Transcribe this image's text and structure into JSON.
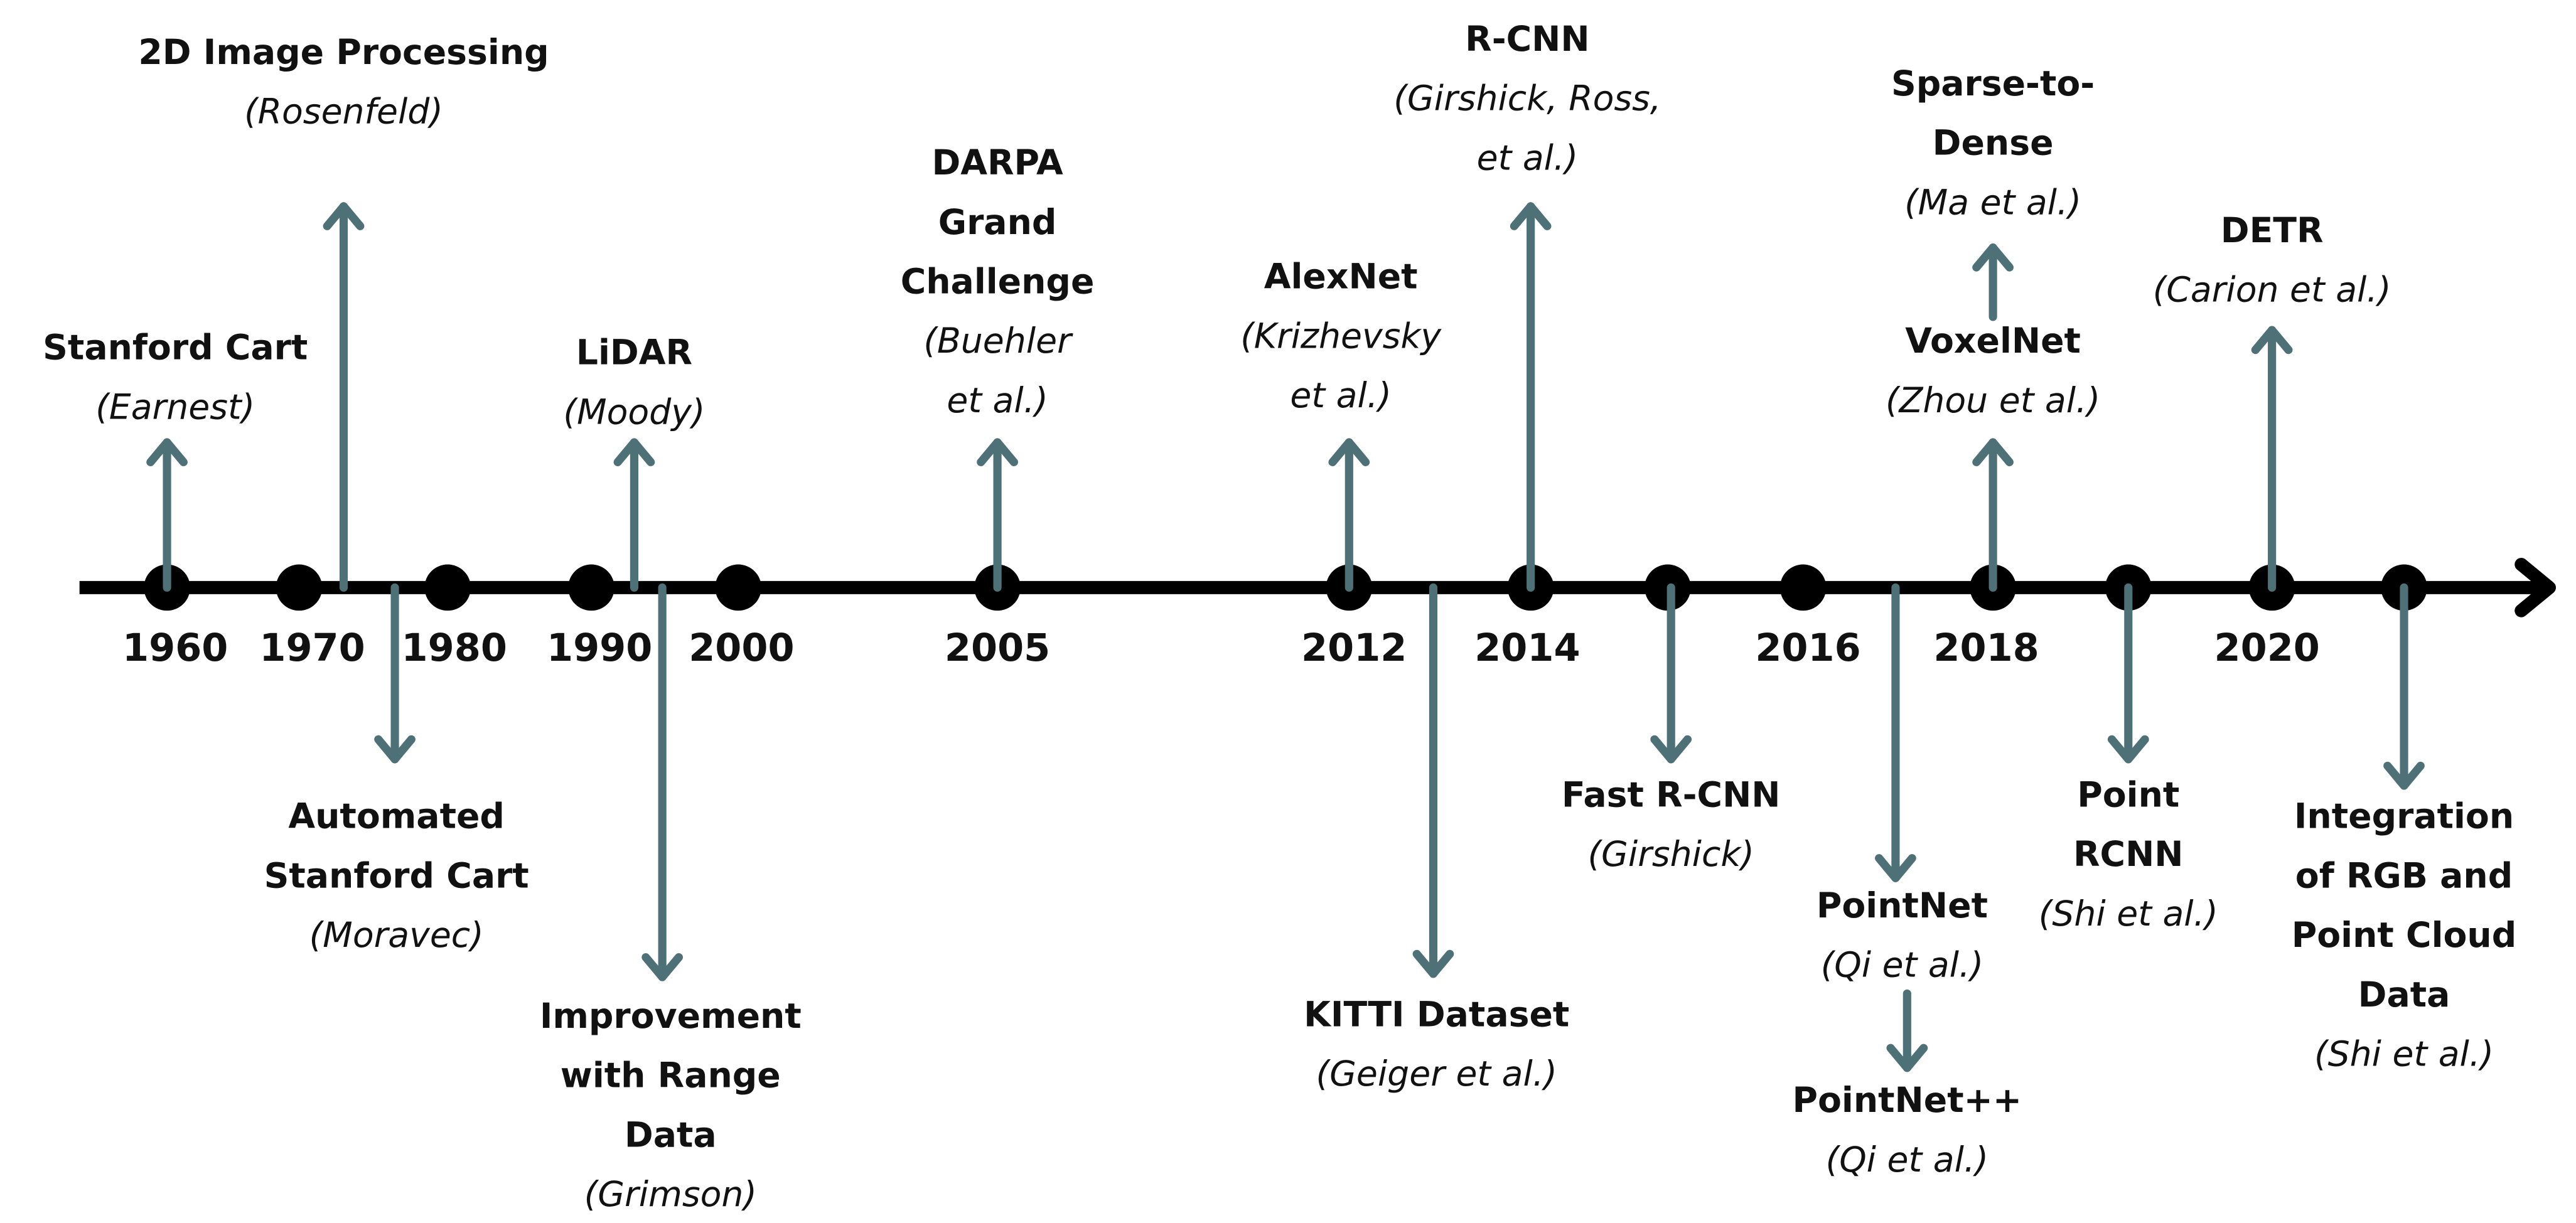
{
  "years": [
    "1960",
    "1970",
    "1980",
    "1990",
    "2000",
    "2005",
    "2012",
    "2014",
    "2016",
    "2018",
    "2020"
  ],
  "events": [
    {
      "title": [
        "Stanford Cart"
      ],
      "author": [
        "(Earnest)"
      ]
    },
    {
      "title": [
        "2D Image Processing"
      ],
      "author": [
        "(Rosenfeld)"
      ]
    },
    {
      "title": [
        "Automated",
        "Stanford Cart"
      ],
      "author": [
        "(Moravec)"
      ]
    },
    {
      "title": [
        "LiDAR"
      ],
      "author": [
        "(Moody)"
      ]
    },
    {
      "title": [
        "Improvement",
        "with Range",
        "Data"
      ],
      "author": [
        "(Grimson)"
      ]
    },
    {
      "title": [
        "DARPA",
        "Grand",
        "Challenge"
      ],
      "author": [
        "(Buehler",
        "et al.)"
      ]
    },
    {
      "title": [
        "AlexNet"
      ],
      "author": [
        "(Krizhevsky",
        "et al.)"
      ]
    },
    {
      "title": [
        "KITTI Dataset"
      ],
      "author": [
        "(Geiger et al.)"
      ]
    },
    {
      "title": [
        "R-CNN"
      ],
      "author": [
        "(Girshick, Ross,",
        "et al.)"
      ]
    },
    {
      "title": [
        "Fast R-CNN"
      ],
      "author": [
        "(Girshick)"
      ]
    },
    {
      "title": [
        "PointNet"
      ],
      "author": [
        "(Qi et al.)"
      ]
    },
    {
      "title": [
        "PointNet++"
      ],
      "author": [
        "(Qi et al.)"
      ]
    },
    {
      "title": [
        "VoxelNet"
      ],
      "author": [
        "(Zhou et al.)"
      ]
    },
    {
      "title": [
        "Sparse-to-",
        "Dense"
      ],
      "author": [
        "(Ma et al.)"
      ]
    },
    {
      "title": [
        "Point",
        "RCNN"
      ],
      "author": [
        "(Shi et al.)"
      ]
    },
    {
      "title": [
        "DETR"
      ],
      "author": [
        "(Carion et al.)"
      ]
    },
    {
      "title": [
        "Integration",
        "of RGB and",
        "Point Cloud",
        "Data"
      ],
      "author": [
        "(Shi et al.)"
      ]
    }
  ]
}
